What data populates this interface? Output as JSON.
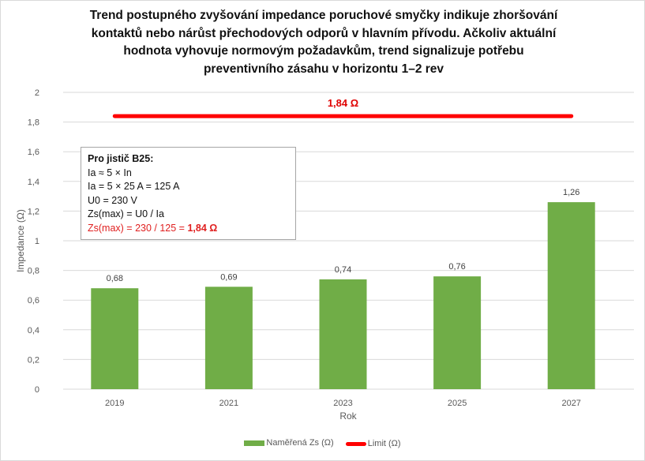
{
  "chart_data": {
    "type": "bar",
    "title": "Trend postupného zvyšování impedance poruchové smyčky indikuje zhoršování kontaktů nebo nárůst přechodových odporů v hlavním přívodu. Ačkoliv aktuální hodnota vyhovuje normovým požadavkům, trend signalizuje potřebu preventivního zásahu v horizontu 1–2 rev",
    "title_lines": [
      "Trend postupného zvyšování impedance poruchové smyčky indikuje zhoršování",
      "kontaktů nebo nárůst přechodových odporů v hlavním přívodu. Ačkoliv aktuální",
      "hodnota vyhovuje normovým požadavkům, trend signalizuje potřebu",
      "preventivního zásahu v horizontu 1–2 rev"
    ],
    "xlabel": "Rok",
    "ylabel": "Impedance (Ω)",
    "categories": [
      "2019",
      "2021",
      "2023",
      "2025",
      "2027"
    ],
    "series": [
      {
        "name": "Naměřená Zs (Ω)",
        "type": "bar",
        "color": "#70ad47",
        "values": [
          0.68,
          0.69,
          0.74,
          0.76,
          1.26
        ],
        "data_labels": [
          "0,68",
          "0,69",
          "0,74",
          "0,76",
          "1,26"
        ]
      },
      {
        "name": "Limit (Ω)",
        "type": "line",
        "color": "#ff0000",
        "values": [
          1.84,
          1.84,
          1.84,
          1.84,
          1.84
        ],
        "annotation": "1,84 Ω"
      }
    ],
    "ylim": [
      0,
      2
    ],
    "yticks": [
      0,
      0.2,
      0.4,
      0.6,
      0.8,
      1,
      1.2,
      1.4,
      1.6,
      1.8,
      2
    ],
    "ytick_labels": [
      "0",
      "0,2",
      "0,4",
      "0,6",
      "0,8",
      "1",
      "1,2",
      "1,4",
      "1,6",
      "1,8",
      "2"
    ],
    "grid": true,
    "legend_position": "bottom",
    "annotation_box": {
      "lines": [
        "Pro jistič B25:",
        "Ia ≈ 5 × In",
        "Ia = 5 × 25 A = 125 A",
        "U0 = 230 V",
        "Zs(max) = U0 / Ia"
      ],
      "last_line_prefix": "Zs(max) = 230 / 125  = ",
      "last_line_result": "1,84 Ω"
    }
  }
}
